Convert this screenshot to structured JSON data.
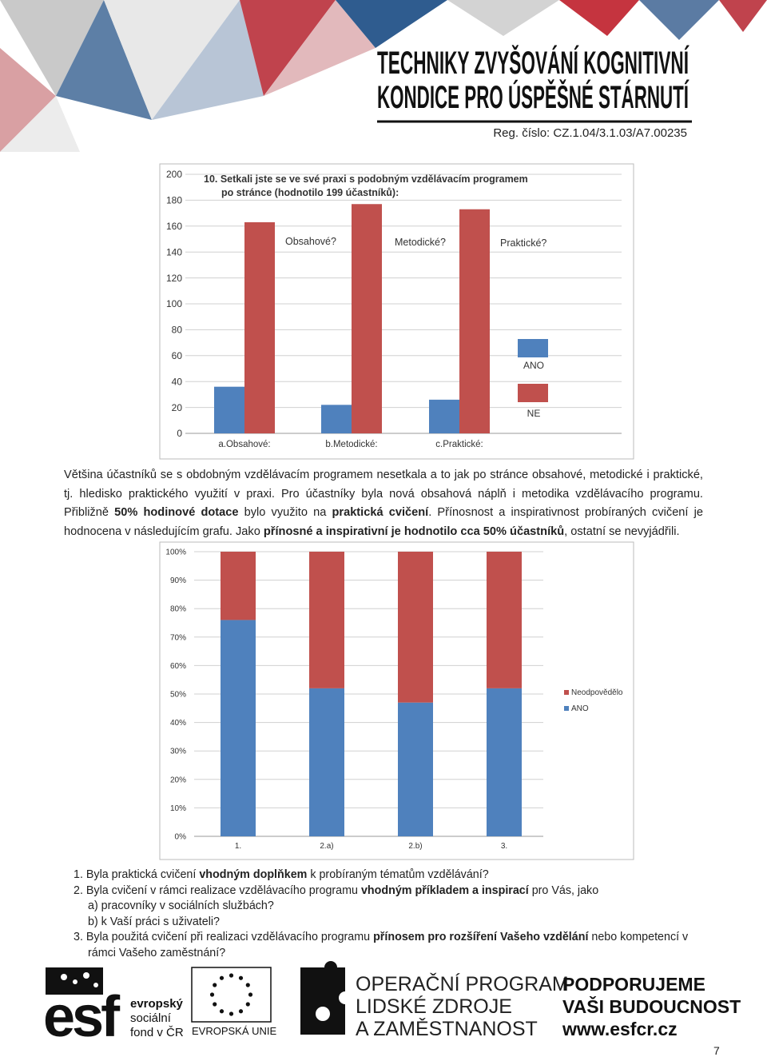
{
  "header": {
    "title_lines": [
      "TECHNIKY ZVYŠOVÁNÍ KOGNITIVNÍ",
      "KONDICE PRO ÚSPĚŠNÉ STÁRNUTÍ"
    ],
    "reg": "Reg. číslo: CZ.1.04/3.1.03/A7.00235"
  },
  "chart_data": [
    {
      "type": "bar",
      "title": [
        "10. Setkali jste se ve své praxi s podobným vzdělávacím programem",
        "po stránce (hodnotilo 199 účastníků):"
      ],
      "categories": [
        "a.Obsahové:",
        "b.Metodické:",
        "c.Praktické:"
      ],
      "series": [
        {
          "name": "ANO",
          "color": "#4f81bd",
          "values": [
            36,
            22,
            26
          ]
        },
        {
          "name": "NE",
          "color": "#c0504d",
          "values": [
            163,
            177,
            173
          ]
        }
      ],
      "annotations": [
        "Obsahové?",
        "Metodické?",
        "Praktické?"
      ],
      "ylim": [
        0,
        200
      ],
      "yticks": [
        0,
        20,
        40,
        60,
        80,
        100,
        120,
        140,
        160,
        180,
        200
      ],
      "grid": true
    },
    {
      "type": "stacked_bar",
      "categories": [
        "1.",
        "2.a)",
        "2.b)",
        "3."
      ],
      "series": [
        {
          "name": "ANO",
          "color": "#4f81bd",
          "values": [
            76,
            52,
            47,
            52
          ]
        },
        {
          "name": "Neodpovědělo",
          "color": "#c0504d",
          "values": [
            24,
            48,
            53,
            48
          ]
        }
      ],
      "ylim": [
        0,
        100
      ],
      "yticks": [
        {
          "value": 0,
          "label": "0%"
        },
        {
          "value": 10,
          "label": "10%"
        },
        {
          "value": 20,
          "label": "20%"
        },
        {
          "value": 30,
          "label": "30%"
        },
        {
          "value": 40,
          "label": "40%"
        },
        {
          "value": 50,
          "label": "50%"
        },
        {
          "value": 60,
          "label": "60%"
        },
        {
          "value": 70,
          "label": "70%"
        },
        {
          "value": 80,
          "label": "80%"
        },
        {
          "value": 90,
          "label": "90%"
        },
        {
          "value": 100,
          "label": "100%"
        }
      ],
      "grid": true
    }
  ],
  "paragraph": [
    {
      "text": "Většina účastníků se s obdobným vzdělávacím programem nesetkala a to jak po stránce obsahové, metodické i praktické, tj. hledisko praktického využití v praxi. Pro účastníky byla nová obsahová náplň i metodika vzdělávacího programu. Přibližně ",
      "bold": false
    },
    {
      "text": "50% hodinové dotace",
      "bold": true
    },
    {
      "text": " bylo využito na ",
      "bold": false
    },
    {
      "text": "praktická cvičení",
      "bold": true
    },
    {
      "text": ". Přínosnost a inspirativnost probíraných cvičení je hodnocena v následujícím grafu. Jako ",
      "bold": false
    },
    {
      "text": "přínosné a inspirativní je hodnotilo cca 50% účastníků",
      "bold": true
    },
    {
      "text": ", ostatní se nevyjádřili.",
      "bold": false
    }
  ],
  "questions": [
    [
      {
        "text": "1. Byla praktická cvičení ",
        "bold": false
      },
      {
        "text": "vhodným doplňkem",
        "bold": true
      },
      {
        "text": " k probíraným tématům vzdělávání?",
        "bold": false
      }
    ],
    [
      {
        "text": "2. Byla cvičení v rámci realizace vzdělávacího programu ",
        "bold": false
      },
      {
        "text": "vhodným příkladem a inspirací",
        "bold": true
      },
      {
        "text": " pro  Vás, jako",
        "bold": false
      }
    ],
    [
      {
        "text": "a) pracovníky v sociálních službách?",
        "bold": false
      }
    ],
    [
      {
        "text": "b) k Vaší práci s uživateli?",
        "bold": false
      }
    ],
    [
      {
        "text": "3. Byla použitá cvičení při realizaci vzdělávacího programu ",
        "bold": false
      },
      {
        "text": "přínosem pro rozšíření Vašeho vzdělání",
        "bold": true
      },
      {
        "text": " nebo kompetencí v rámci Vašeho zaměstnání?",
        "bold": false
      }
    ]
  ],
  "footer": {
    "esf": "esf",
    "esf_lines": [
      "evropský",
      "sociální",
      "fond v ČR"
    ],
    "eu": "EVROPSKÁ UNIE",
    "op_lines": [
      "OPERAČNÍ PROGRAM",
      "LIDSKÉ ZDROJE",
      "A ZAMĚSTNANOST"
    ],
    "support_lines": [
      "PODPORUJEME",
      "VAŠI BUDOUCNOST",
      "www.esfcr.cz"
    ]
  },
  "page_number": "7"
}
